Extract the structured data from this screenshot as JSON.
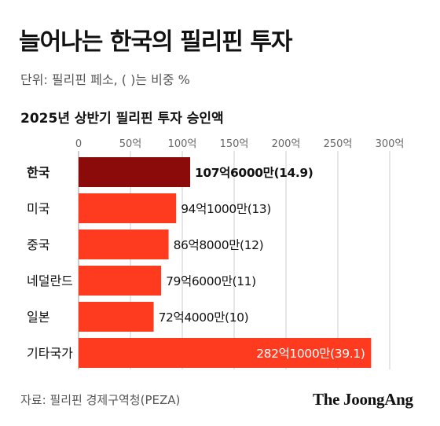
{
  "header": {
    "title": "늘어나는 한국의 필리핀 투자",
    "unit_note": "단위: 필리핀 페소, ( )는 비중 %",
    "subtitle": "2025년 상반기 필리핀 투자 승인액"
  },
  "footer": {
    "source": "자료: 필리핀 경제구역청(PEZA)",
    "brand": "The JoongAng"
  },
  "colors": {
    "highlight": "#8b0a0a",
    "bar": "#ff3b1f",
    "grid": "#cccccc",
    "axis_line": "#999999"
  },
  "chart_data": {
    "type": "bar",
    "orientation": "horizontal",
    "title": "2025년 상반기 필리핀 투자 승인액",
    "xlabel": "",
    "ylabel": "",
    "xlim": [
      0,
      300
    ],
    "x_ticks": [
      0,
      50,
      100,
      150,
      200,
      250,
      300
    ],
    "x_tick_labels": [
      "0",
      "50억",
      "100억",
      "150억",
      "200억",
      "250억",
      "300억"
    ],
    "grid": true,
    "categories": [
      "한국",
      "미국",
      "중국",
      "네덜란드",
      "일본",
      "기타국가"
    ],
    "values": [
      107.6,
      94.1,
      86.8,
      79.6,
      72.4,
      282.1
    ],
    "share_percent": [
      14.9,
      13,
      12,
      11,
      10,
      39.1
    ],
    "data_labels": [
      "107억6000만(14.9)",
      "94억1000만(13)",
      "86억8000만(12)",
      "79억6000만(11)",
      "72억4000만(10)",
      "282억1000만(39.1)"
    ],
    "highlight_index": 0
  }
}
